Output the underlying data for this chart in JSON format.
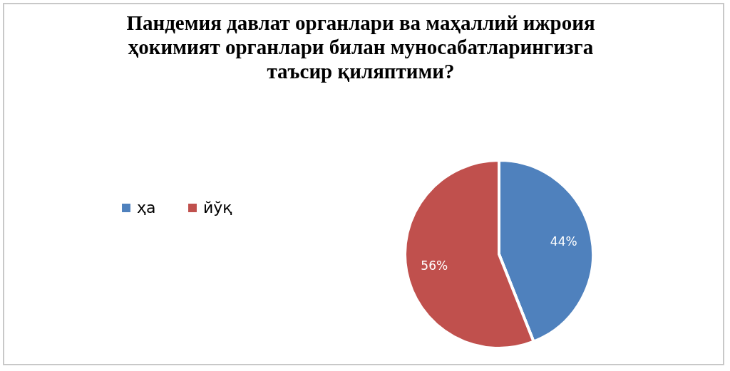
{
  "chart_data": {
    "type": "pie",
    "title": "Пандемия давлат органлари ва маҳаллий ижроия ҳокимият органлари билан муносабатларингизга таъсир қиляптими?",
    "categories": [
      "ҳа",
      "йўқ"
    ],
    "values": [
      44,
      56
    ],
    "colors": [
      "#4f81bd",
      "#c0504d"
    ],
    "value_labels": [
      "44%",
      "56%"
    ],
    "legend": "left"
  }
}
